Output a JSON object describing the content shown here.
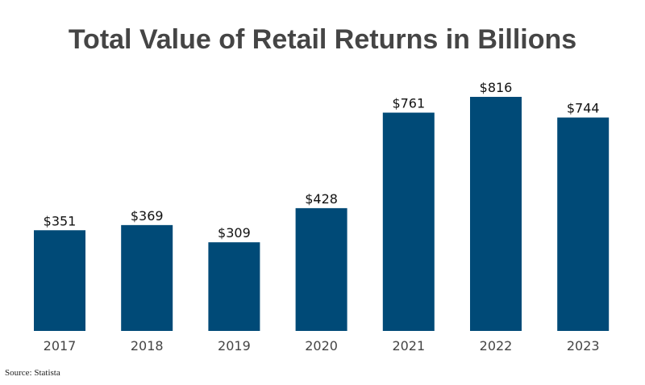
{
  "chart_data": {
    "type": "bar",
    "title": "Total Value of Retail Returns in Billions",
    "categories": [
      "2017",
      "2018",
      "2019",
      "2020",
      "2021",
      "2022",
      "2023"
    ],
    "values": [
      351,
      369,
      309,
      428,
      761,
      816,
      744
    ],
    "data_labels": [
      "$351",
      "$369",
      "$309",
      "$428",
      "$761",
      "$816",
      "$744"
    ],
    "xlabel": "",
    "ylabel": "",
    "ylim": [
      0,
      816
    ],
    "grid": false,
    "legend": "none",
    "bar_color": "#004a77"
  },
  "source": "Source: Statista"
}
